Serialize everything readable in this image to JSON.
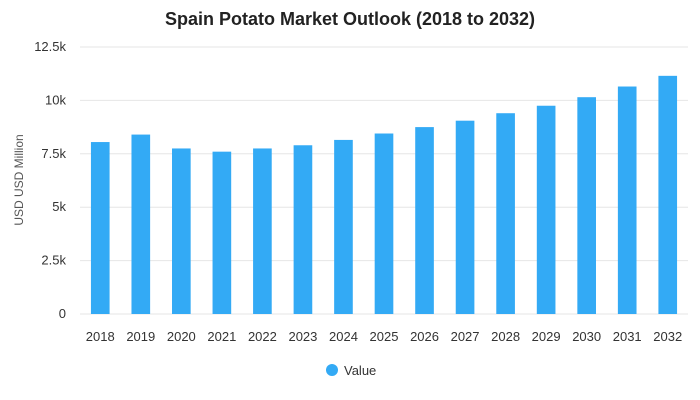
{
  "chart_data": {
    "type": "bar",
    "title": "Spain Potato Market Outlook (2018 to 2032)",
    "xlabel": "",
    "ylabel": "USD USD Million",
    "categories": [
      "2018",
      "2019",
      "2020",
      "2021",
      "2022",
      "2023",
      "2024",
      "2025",
      "2026",
      "2027",
      "2028",
      "2029",
      "2030",
      "2031",
      "2032"
    ],
    "series": [
      {
        "name": "Value",
        "values": [
          8050,
          8400,
          7750,
          7600,
          7750,
          7900,
          8150,
          8450,
          8750,
          9050,
          9400,
          9750,
          10150,
          10650,
          11150
        ]
      }
    ],
    "ylim": [
      0,
      12500
    ],
    "yticks": [
      0,
      2500,
      5000,
      7500,
      10000,
      12500
    ],
    "ytick_labels": [
      "0",
      "2.5k",
      "5k",
      "7.5k",
      "10k",
      "12.5k"
    ],
    "grid": true,
    "legend_position": "bottom-center",
    "colors": {
      "bar": "#33aaf5",
      "grid": "#e6e6e6"
    }
  }
}
